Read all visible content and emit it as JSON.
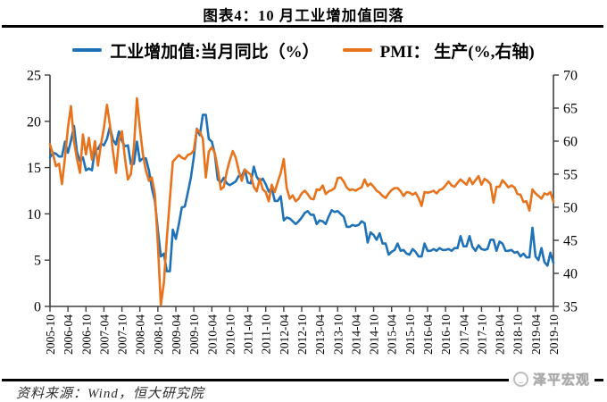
{
  "title": "图表4：10 月工业增加值回落",
  "legend": {
    "series1": "工业增加值:当月同比（%）",
    "series2": "PMI： 生产(%,右轴)"
  },
  "source_note": "资料来源：Wind，恒大研究院",
  "watermark": "泽平宏观",
  "colors": {
    "industrial_line": "#1F72B8",
    "pmi_line": "#E8731D",
    "axis": "#3f3f3f",
    "rule": "#000000",
    "watermark": "#a9a9a9"
  },
  "chart_data": {
    "type": "line",
    "title": "图表4：10 月工业增加值回落",
    "x_frequency": "monthly",
    "x_start": "2005-10",
    "x_end": "2019-10",
    "grid": false,
    "legend_position": "top",
    "x_tick_labels": [
      "2005-10",
      "2006-04",
      "2006-10",
      "2007-04",
      "2007-10",
      "2008-04",
      "2008-10",
      "2009-04",
      "2009-10",
      "2010-04",
      "2010-10",
      "2011-04",
      "2011-10",
      "2012-04",
      "2012-10",
      "2013-04",
      "2013-10",
      "2014-04",
      "2014-10",
      "2015-04",
      "2015-10",
      "2016-04",
      "2016-10",
      "2017-04",
      "2017-10",
      "2018-04",
      "2018-10",
      "2019-04",
      "2019-10"
    ],
    "x_tick_every_n_months": 6,
    "left_axis": {
      "min": 0,
      "max": 25,
      "ticks": [
        0,
        5,
        10,
        15,
        20,
        25
      ]
    },
    "right_axis": {
      "min": 35,
      "max": 70,
      "ticks": [
        35,
        40,
        45,
        50,
        55,
        60,
        65,
        70
      ]
    },
    "series": [
      {
        "name": "工业增加值:当月同比（%）",
        "axis": "left",
        "color": "#1F72B8",
        "values": [
          16.1,
          16.6,
          16.5,
          16.2,
          16.2,
          17.8,
          16.6,
          17.9,
          19.5,
          16.7,
          15.7,
          16.1,
          14.7,
          14.9,
          14.7,
          17.0,
          17.0,
          17.6,
          17.4,
          18.1,
          19.4,
          18.0,
          17.5,
          18.9,
          17.9,
          17.3,
          17.4,
          15.4,
          15.4,
          17.8,
          15.7,
          16.0,
          16.0,
          14.7,
          12.8,
          11.4,
          8.2,
          5.4,
          5.7,
          3.8,
          3.8,
          8.3,
          7.3,
          8.9,
          10.7,
          10.8,
          12.3,
          13.9,
          16.1,
          19.2,
          18.5,
          20.7,
          20.7,
          18.1,
          17.8,
          16.5,
          13.7,
          13.4,
          13.9,
          13.3,
          13.1,
          13.3,
          13.5,
          14.1,
          14.1,
          14.8,
          13.4,
          13.3,
          15.1,
          14.0,
          13.5,
          13.8,
          13.2,
          12.4,
          12.8,
          11.4,
          11.4,
          11.9,
          9.3,
          9.6,
          9.5,
          9.2,
          8.9,
          9.2,
          9.6,
          10.1,
          10.3,
          9.9,
          9.9,
          8.9,
          9.3,
          9.2,
          8.9,
          9.7,
          10.4,
          10.2,
          10.3,
          10.0,
          9.7,
          8.6,
          8.6,
          8.8,
          8.7,
          8.8,
          9.2,
          9.0,
          6.9,
          8.0,
          7.7,
          7.2,
          7.9,
          6.8,
          6.8,
          5.6,
          5.9,
          6.1,
          6.8,
          6.0,
          6.1,
          5.7,
          5.6,
          6.2,
          5.9,
          5.4,
          5.4,
          6.8,
          6.0,
          6.0,
          6.2,
          6.0,
          6.3,
          6.1,
          6.1,
          6.2,
          6.0,
          6.3,
          6.3,
          7.6,
          6.5,
          6.5,
          7.6,
          6.4,
          6.0,
          6.6,
          6.2,
          6.1,
          6.2,
          7.2,
          7.2,
          6.0,
          7.0,
          6.8,
          6.0,
          6.0,
          6.1,
          5.8,
          5.9,
          5.4,
          5.7,
          5.3,
          5.3,
          8.5,
          5.4,
          5.0,
          6.3,
          4.8,
          4.4,
          5.8,
          4.7
        ]
      },
      {
        "name": "PMI： 生产(%,右轴)",
        "axis": "right",
        "color": "#E8731D",
        "values": [
          59.5,
          58.0,
          56.2,
          56.6,
          53.5,
          57.5,
          62.0,
          65.3,
          60.0,
          57.3,
          55.2,
          61.0,
          58.0,
          60.5,
          57.2,
          60.0,
          56.3,
          59.5,
          62.0,
          65.5,
          62.5,
          58.5,
          55.2,
          60.0,
          61.5,
          57.5,
          54.2,
          55.0,
          59.0,
          66.5,
          62.0,
          58.0,
          55.6,
          54.0,
          54.5,
          52.0,
          44.3,
          35.2,
          38.6,
          45.3,
          51.2,
          56.9,
          57.4,
          57.9,
          57.5,
          57.3,
          57.9,
          58.1,
          58.6,
          61.8,
          61.4,
          60.4,
          54.5,
          58.4,
          59.1,
          58.2,
          55.8,
          52.7,
          53.1,
          55.4,
          57.1,
          58.5,
          57.5,
          55.5,
          54.0,
          55.7,
          55.3,
          54.9,
          53.1,
          52.4,
          54.3,
          52.7,
          52.3,
          50.9,
          53.4,
          52.3,
          53.8,
          55.2,
          57.3,
          52.9,
          51.3,
          51.8,
          50.9,
          51.3,
          52.1,
          52.5,
          52.0,
          51.3,
          51.2,
          52.7,
          52.6,
          53.3,
          52.0,
          52.4,
          52.6,
          52.9,
          54.4,
          54.5,
          53.9,
          53.0,
          52.6,
          52.7,
          52.5,
          52.8,
          53.0,
          54.2,
          53.2,
          53.6,
          53.1,
          52.5,
          52.2,
          51.7,
          51.4,
          52.1,
          52.6,
          52.9,
          52.9,
          52.4,
          51.7,
          52.3,
          52.2,
          51.9,
          52.2,
          51.4,
          50.2,
          52.3,
          52.2,
          52.3,
          52.5,
          52.1,
          52.6,
          52.8,
          53.3,
          53.9,
          53.3,
          53.1,
          53.7,
          54.2,
          53.8,
          53.4,
          54.4,
          53.5,
          54.1,
          54.7,
          53.4,
          54.3,
          54.0,
          53.5,
          50.7,
          53.1,
          53.1,
          54.1,
          53.6,
          53.0,
          53.3,
          53.0,
          52.0,
          51.9,
          50.8,
          50.9,
          49.5,
          52.7,
          52.1,
          51.7,
          51.3,
          52.1,
          51.9,
          52.3,
          50.8
        ]
      }
    ]
  }
}
